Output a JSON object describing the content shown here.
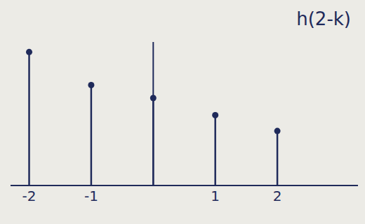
{
  "chart_data": {
    "type": "stem",
    "title": "h(2-k)",
    "x": [
      -2,
      -1,
      0,
      1,
      2
    ],
    "values": [
      9.3,
      7.0,
      6.1,
      4.9,
      3.8
    ],
    "color": "#1f2a5a",
    "xlim": [
      -2.3,
      3.3
    ],
    "xticks": [
      -2,
      -1,
      1,
      2
    ],
    "ylim": [
      0,
      10
    ],
    "yticks": [],
    "tick_labels": "x",
    "marker": "circle"
  }
}
